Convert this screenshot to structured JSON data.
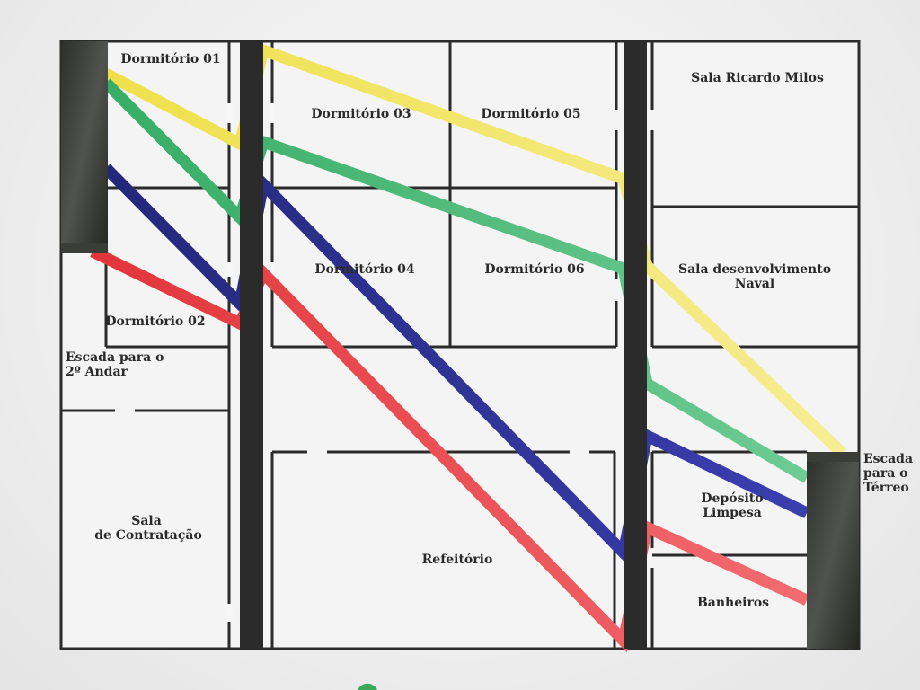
{
  "floor_plan": {
    "rooms": {
      "dormitorio_01": "Dormitório 01",
      "dormitorio_02": "Dormitório 02",
      "dormitorio_03": "Dormitório 03",
      "dormitorio_04": "Dormitório 04",
      "dormitorio_05": "Dormitório 05",
      "dormitorio_06": "Dormitório 06",
      "sala_ricardo_milos": "Sala Ricardo Milos",
      "sala_desenvolvimento_line1": "Sala desenvolvimento",
      "sala_desenvolvimento_line2": "Naval",
      "escada_2_line1": "Escada para o",
      "escada_2_line2": "2º Andar",
      "sala_contratacao_line1": "Sala",
      "sala_contratacao_line2": "de Contratação",
      "refeitorio": "Refeitório",
      "deposito_line1": "Depósito",
      "deposito_line2": "Limpesa",
      "banheiros": "Banheiros",
      "escada_terreo_line1": "Escada",
      "escada_terreo_line2": "para o",
      "escada_terreo_line3": "Térreo"
    },
    "route_colors": {
      "yellow": "#f2e25a",
      "green": "#4cb87a",
      "blue": "#2a2d8c",
      "red": "#e8393d"
    },
    "wall_color": "#2b2b2b",
    "stair_color": "#3a3d38"
  }
}
